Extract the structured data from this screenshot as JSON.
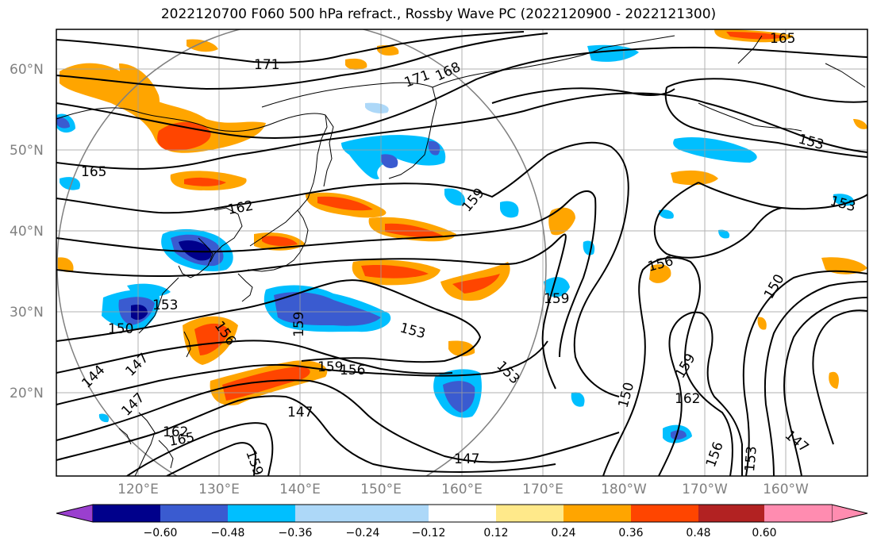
{
  "title": "2022120700 F060 500 hPa refract., Rossby Wave PC (2022120900 - 2022121300)",
  "lat_ticks": [
    "60°N",
    "50°N",
    "40°N",
    "30°N",
    "20°N"
  ],
  "lon_ticks": [
    "120°E",
    "130°E",
    "140°E",
    "150°E",
    "160°E",
    "170°E",
    "180°W",
    "170°W",
    "160°W"
  ],
  "colorbar": {
    "ticks": [
      "−0.60",
      "−0.48",
      "−0.36",
      "−0.24",
      "−0.12",
      "0.12",
      "0.24",
      "0.36",
      "0.48",
      "0.60"
    ],
    "colors": [
      "#9a3fcf",
      "#00008b",
      "#3a5bd0",
      "#00bfff",
      "#add8f8",
      "#ffffff",
      "#ffe98a",
      "#ffa500",
      "#ff4500",
      "#b22222",
      "#ff8cb0"
    ]
  },
  "contour_labels": [
    {
      "text": "171",
      "id": "c171a"
    },
    {
      "text": "171",
      "id": "c171b"
    },
    {
      "text": "168",
      "id": "c168"
    },
    {
      "text": "165",
      "id": "c165a"
    },
    {
      "text": "165",
      "id": "c165b"
    },
    {
      "text": "165",
      "id": "c165c"
    },
    {
      "text": "162",
      "id": "c162a"
    },
    {
      "text": "162",
      "id": "c162b"
    },
    {
      "text": "162",
      "id": "c162c"
    },
    {
      "text": "159",
      "id": "c159a"
    },
    {
      "text": "159",
      "id": "c159b"
    },
    {
      "text": "159",
      "id": "c159c"
    },
    {
      "text": "159",
      "id": "c159d"
    },
    {
      "text": "159",
      "id": "c159e"
    },
    {
      "text": "159",
      "id": "c159f"
    },
    {
      "text": "156",
      "id": "c156a"
    },
    {
      "text": "156",
      "id": "c156b"
    },
    {
      "text": "156",
      "id": "c156c"
    },
    {
      "text": "156",
      "id": "c156d"
    },
    {
      "text": "153",
      "id": "c153a"
    },
    {
      "text": "153",
      "id": "c153b"
    },
    {
      "text": "153",
      "id": "c153c"
    },
    {
      "text": "153",
      "id": "c153d"
    },
    {
      "text": "153",
      "id": "c153e"
    },
    {
      "text": "153",
      "id": "c153f"
    },
    {
      "text": "150",
      "id": "c150a"
    },
    {
      "text": "150",
      "id": "c150b"
    },
    {
      "text": "150",
      "id": "c150c"
    },
    {
      "text": "147",
      "id": "c147a"
    },
    {
      "text": "147",
      "id": "c147b"
    },
    {
      "text": "147",
      "id": "c147c"
    },
    {
      "text": "147",
      "id": "c147d"
    },
    {
      "text": "147",
      "id": "c147e"
    },
    {
      "text": "144",
      "id": "c144"
    }
  ]
}
